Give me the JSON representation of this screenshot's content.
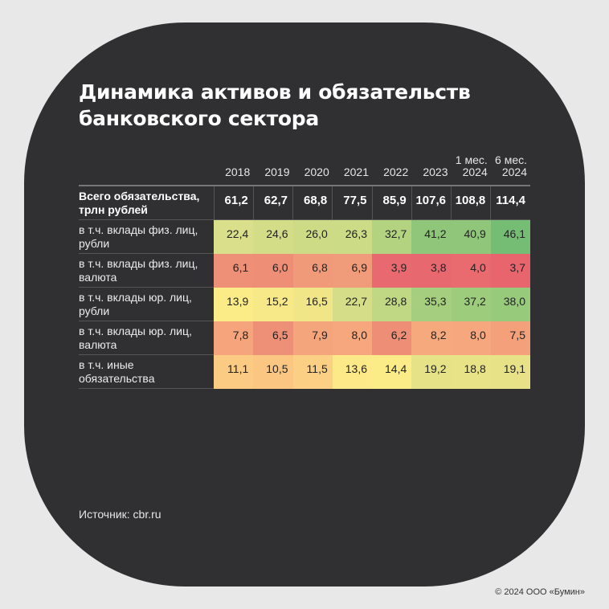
{
  "title_line1": "Динамика активов и обязательств",
  "title_line2": "банковского сектора",
  "source": "Источник: cbr.ru",
  "copyright": "© 2024 ООО «Бумин»",
  "chart_data": {
    "type": "heatmap",
    "columns": [
      {
        "top": "",
        "bottom": "2018"
      },
      {
        "top": "",
        "bottom": "2019"
      },
      {
        "top": "",
        "bottom": "2020"
      },
      {
        "top": "",
        "bottom": "2021"
      },
      {
        "top": "",
        "bottom": "2022"
      },
      {
        "top": "",
        "bottom": "2023"
      },
      {
        "top": "1 мес.",
        "bottom": "2024"
      },
      {
        "top": "6 мес.",
        "bottom": "2024"
      }
    ],
    "total": {
      "label": [
        "Всего обязательства,",
        "трлн рублей"
      ],
      "values": [
        "61,2",
        "62,7",
        "68,8",
        "77,5",
        "85,9",
        "107,6",
        "108,8",
        "114,4"
      ]
    },
    "rows": [
      {
        "label": [
          "в т.ч. вклады физ. лиц,",
          "рубли"
        ],
        "values": [
          "22,4",
          "24,6",
          "26,0",
          "26,3",
          "32,7",
          "41,2",
          "40,9",
          "46,1"
        ],
        "colors": [
          "#d9df8a",
          "#d3dd88",
          "#cddb86",
          "#ccdb86",
          "#b3d380",
          "#8fc67a",
          "#90c67a",
          "#75bd74"
        ]
      },
      {
        "label": [
          "в т.ч. вклады физ. лиц,",
          "валюта"
        ],
        "values": [
          "6,1",
          "6,0",
          "6,8",
          "6,9",
          "3,9",
          "3,8",
          "4,0",
          "3,7"
        ],
        "colors": [
          "#ee8f77",
          "#ee8e77",
          "#f09a7a",
          "#f09b7a",
          "#e8696f",
          "#e8686f",
          "#e96b70",
          "#e8656e"
        ]
      },
      {
        "label": [
          "в т.ч. вклады юр. лиц,",
          "рубли"
        ],
        "values": [
          "13,9",
          "15,2",
          "16,5",
          "22,7",
          "28,8",
          "35,3",
          "37,2",
          "38,0"
        ],
        "colors": [
          "#fcec88",
          "#f7e988",
          "#f1e687",
          "#d6dd88",
          "#c0d883",
          "#a5cf7e",
          "#9dcc7d",
          "#98ca7c"
        ]
      },
      {
        "label": [
          "в т.ч. вклады юр. лиц,",
          "валюта"
        ],
        "values": [
          "7,8",
          "6,5",
          "7,9",
          "8,0",
          "6,2",
          "8,2",
          "8,0",
          "7,5"
        ],
        "colors": [
          "#f5a47c",
          "#ee8f77",
          "#f5a57c",
          "#f6a77d",
          "#ef8e77",
          "#f6a97d",
          "#f6a77d",
          "#f3a07b"
        ]
      },
      {
        "label": [
          "в т.ч. иные",
          "обязательства"
        ],
        "values": [
          "11,1",
          "10,5",
          "11,5",
          "13,6",
          "14,4",
          "19,2",
          "18,8",
          "19,1"
        ],
        "colors": [
          "#fbcb83",
          "#fac682",
          "#fbcf84",
          "#fde988",
          "#fbec88",
          "#e6e288",
          "#e9e388",
          "#e7e288"
        ]
      }
    ]
  }
}
